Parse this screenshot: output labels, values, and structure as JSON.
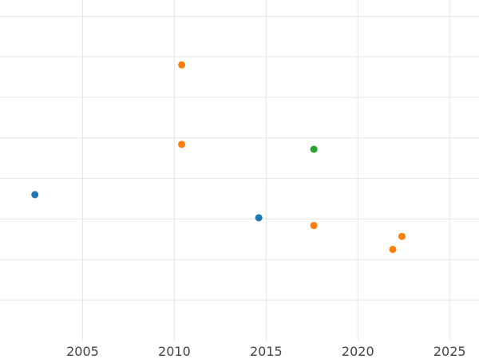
{
  "chart_data": {
    "type": "scatter",
    "title": "",
    "xlabel": "",
    "ylabel": "",
    "xlim": [
      2000.5,
      2026.6
    ],
    "ylim": [
      0,
      8.4
    ],
    "x_ticks": [
      2005,
      2010,
      2015,
      2020,
      2025
    ],
    "x_tick_labels": [
      "2005",
      "2010",
      "2015",
      "2020",
      "2025"
    ],
    "y_gridlines": [
      1,
      2,
      3,
      4,
      5,
      6,
      7,
      8
    ],
    "grid": true,
    "legend": "none",
    "series": [
      {
        "color": "#1f77b4",
        "points": [
          {
            "x": 2002.4,
            "y": 3.6
          },
          {
            "x": 2014.6,
            "y": 3.03
          }
        ]
      },
      {
        "color": "#ff7f0e",
        "points": [
          {
            "x": 2010.4,
            "y": 6.8
          },
          {
            "x": 2010.4,
            "y": 4.84
          },
          {
            "x": 2017.6,
            "y": 2.84
          },
          {
            "x": 2022.4,
            "y": 2.57
          },
          {
            "x": 2021.9,
            "y": 2.25
          }
        ]
      },
      {
        "color": "#2ca02c",
        "points": [
          {
            "x": 2017.6,
            "y": 4.72
          }
        ]
      }
    ]
  }
}
